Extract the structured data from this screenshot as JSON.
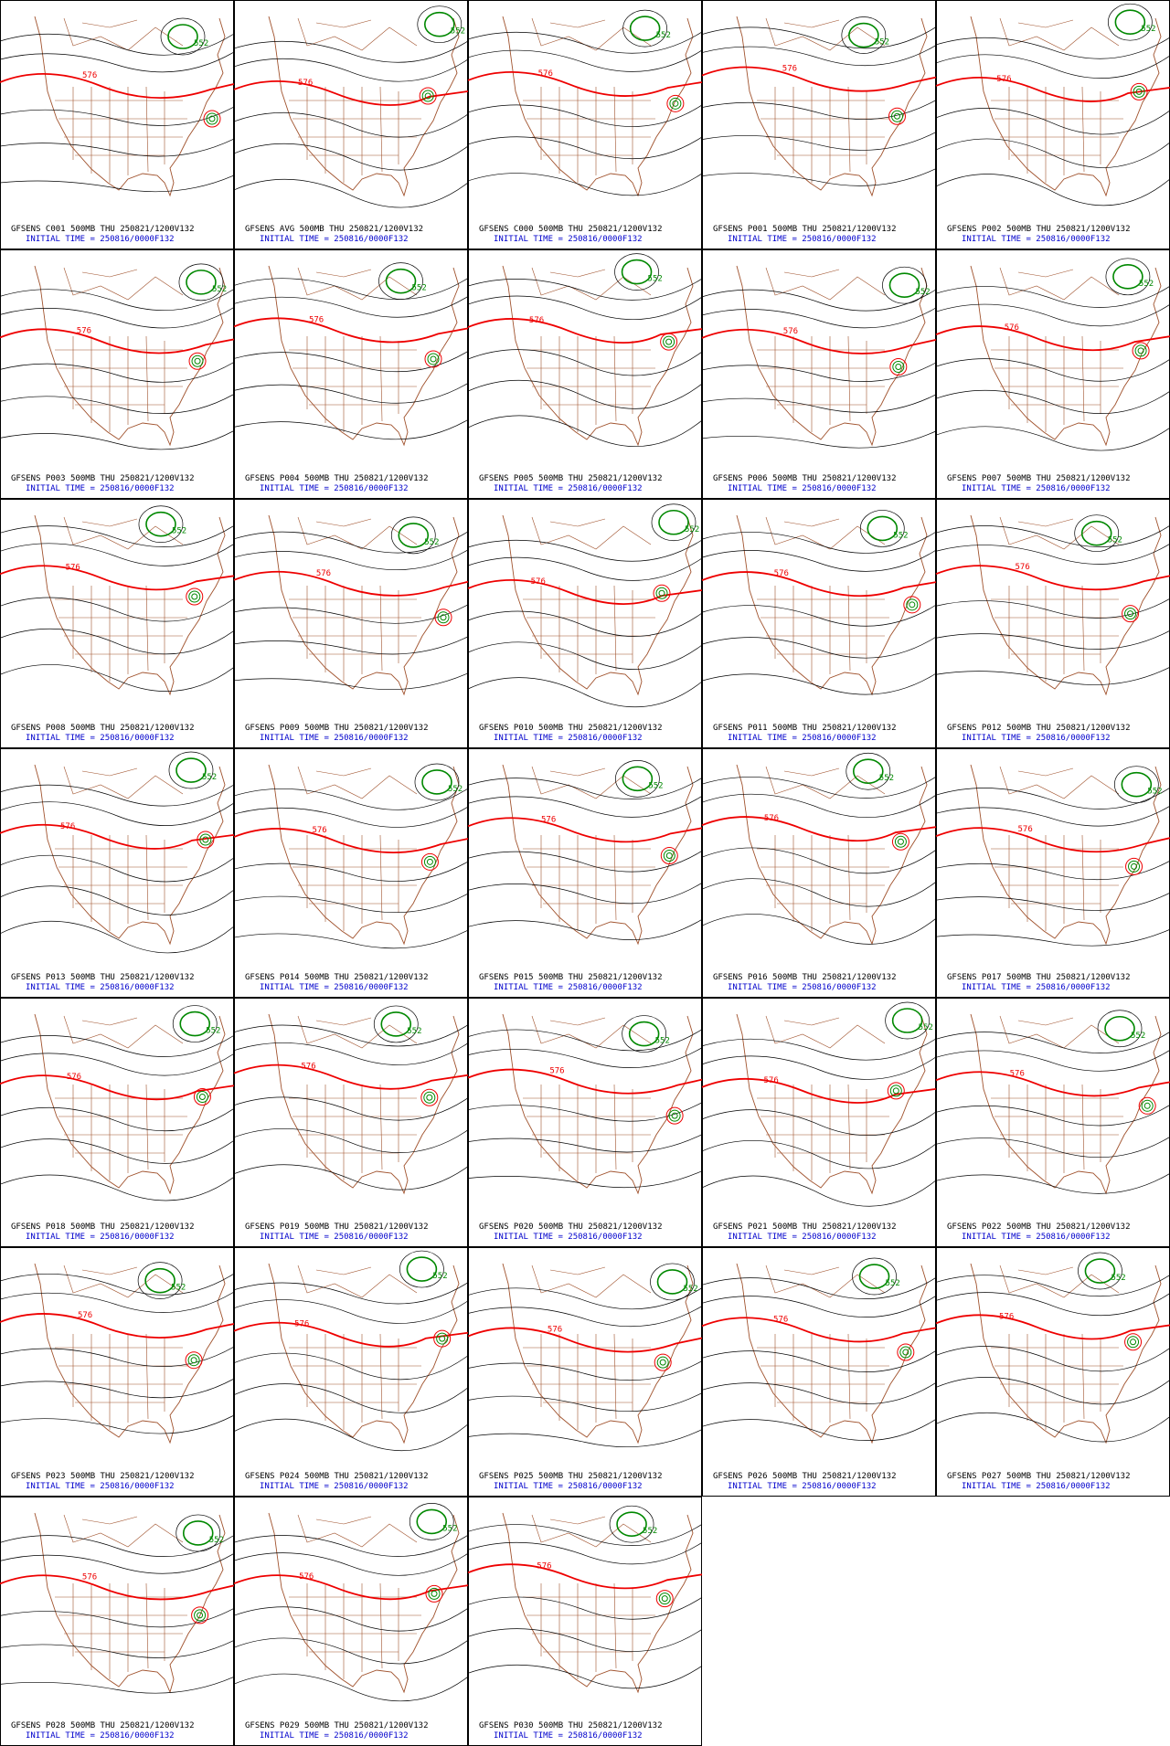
{
  "contour_labels": {
    "red": "576",
    "green": "552"
  },
  "panels": [
    {
      "title": "GFSENS C001 500MB THU 250821/1200V132",
      "init": "INITIAL TIME = 250816/0000F132"
    },
    {
      "title": "GFSENS AVG 500MB THU 250821/1200V132",
      "init": "INITIAL TIME = 250816/0000F132"
    },
    {
      "title": "GFSENS C000 500MB THU 250821/1200V132",
      "init": "INITIAL TIME = 250816/0000F132"
    },
    {
      "title": "GFSENS P001 500MB THU 250821/1200V132",
      "init": "INITIAL TIME = 250816/0000F132"
    },
    {
      "title": "GFSENS P002 500MB THU 250821/1200V132",
      "init": "INITIAL TIME = 250816/0000F132"
    },
    {
      "title": "GFSENS P003 500MB THU 250821/1200V132",
      "init": "INITIAL TIME = 250816/0000F132"
    },
    {
      "title": "GFSENS P004 500MB THU 250821/1200V132",
      "init": "INITIAL TIME = 250816/0000F132"
    },
    {
      "title": "GFSENS P005 500MB THU 250821/1200V132",
      "init": "INITIAL TIME = 250816/0000F132"
    },
    {
      "title": "GFSENS P006 500MB THU 250821/1200V132",
      "init": "INITIAL TIME = 250816/0000F132"
    },
    {
      "title": "GFSENS P007 500MB THU 250821/1200V132",
      "init": "INITIAL TIME = 250816/0000F132"
    },
    {
      "title": "GFSENS P008 500MB THU 250821/1200V132",
      "init": "INITIAL TIME = 250816/0000F132"
    },
    {
      "title": "GFSENS P009 500MB THU 250821/1200V132",
      "init": "INITIAL TIME = 250816/0000F132"
    },
    {
      "title": "GFSENS P010 500MB THU 250821/1200V132",
      "init": "INITIAL TIME = 250816/0000F132"
    },
    {
      "title": "GFSENS P011 500MB THU 250821/1200V132",
      "init": "INITIAL TIME = 250816/0000F132"
    },
    {
      "title": "GFSENS P012 500MB THU 250821/1200V132",
      "init": "INITIAL TIME = 250816/0000F132"
    },
    {
      "title": "GFSENS P013 500MB THU 250821/1200V132",
      "init": "INITIAL TIME = 250816/0000F132"
    },
    {
      "title": "GFSENS P014 500MB THU 250821/1200V132",
      "init": "INITIAL TIME = 250816/0000F132"
    },
    {
      "title": "GFSENS P015 500MB THU 250821/1200V132",
      "init": "INITIAL TIME = 250816/0000F132"
    },
    {
      "title": "GFSENS P016 500MB THU 250821/1200V132",
      "init": "INITIAL TIME = 250816/0000F132"
    },
    {
      "title": "GFSENS P017 500MB THU 250821/1200V132",
      "init": "INITIAL TIME = 250816/0000F132"
    },
    {
      "title": "GFSENS P018 500MB THU 250821/1200V132",
      "init": "INITIAL TIME = 250816/0000F132"
    },
    {
      "title": "GFSENS P019 500MB THU 250821/1200V132",
      "init": "INITIAL TIME = 250816/0000F132"
    },
    {
      "title": "GFSENS P020 500MB THU 250821/1200V132",
      "init": "INITIAL TIME = 250816/0000F132"
    },
    {
      "title": "GFSENS P021 500MB THU 250821/1200V132",
      "init": "INITIAL TIME = 250816/0000F132"
    },
    {
      "title": "GFSENS P022 500MB THU 250821/1200V132",
      "init": "INITIAL TIME = 250816/0000F132"
    },
    {
      "title": "GFSENS P023 500MB THU 250821/1200V132",
      "init": "INITIAL TIME = 250816/0000F132"
    },
    {
      "title": "GFSENS P024 500MB THU 250821/1200V132",
      "init": "INITIAL TIME = 250816/0000F132"
    },
    {
      "title": "GFSENS P025 500MB THU 250821/1200V132",
      "init": "INITIAL TIME = 250816/0000F132"
    },
    {
      "title": "GFSENS P026 500MB THU 250821/1200V132",
      "init": "INITIAL TIME = 250816/0000F132"
    },
    {
      "title": "GFSENS P027 500MB THU 250821/1200V132",
      "init": "INITIAL TIME = 250816/0000F132"
    },
    {
      "title": "GFSENS P028 500MB THU 250821/1200V132",
      "init": "INITIAL TIME = 250816/0000F132"
    },
    {
      "title": "GFSENS P029 500MB THU 250821/1200V132",
      "init": "INITIAL TIME = 250816/0000F132"
    },
    {
      "title": "GFSENS P030 500MB THU 250821/1200V132",
      "init": "INITIAL TIME = 250816/0000F132"
    }
  ]
}
